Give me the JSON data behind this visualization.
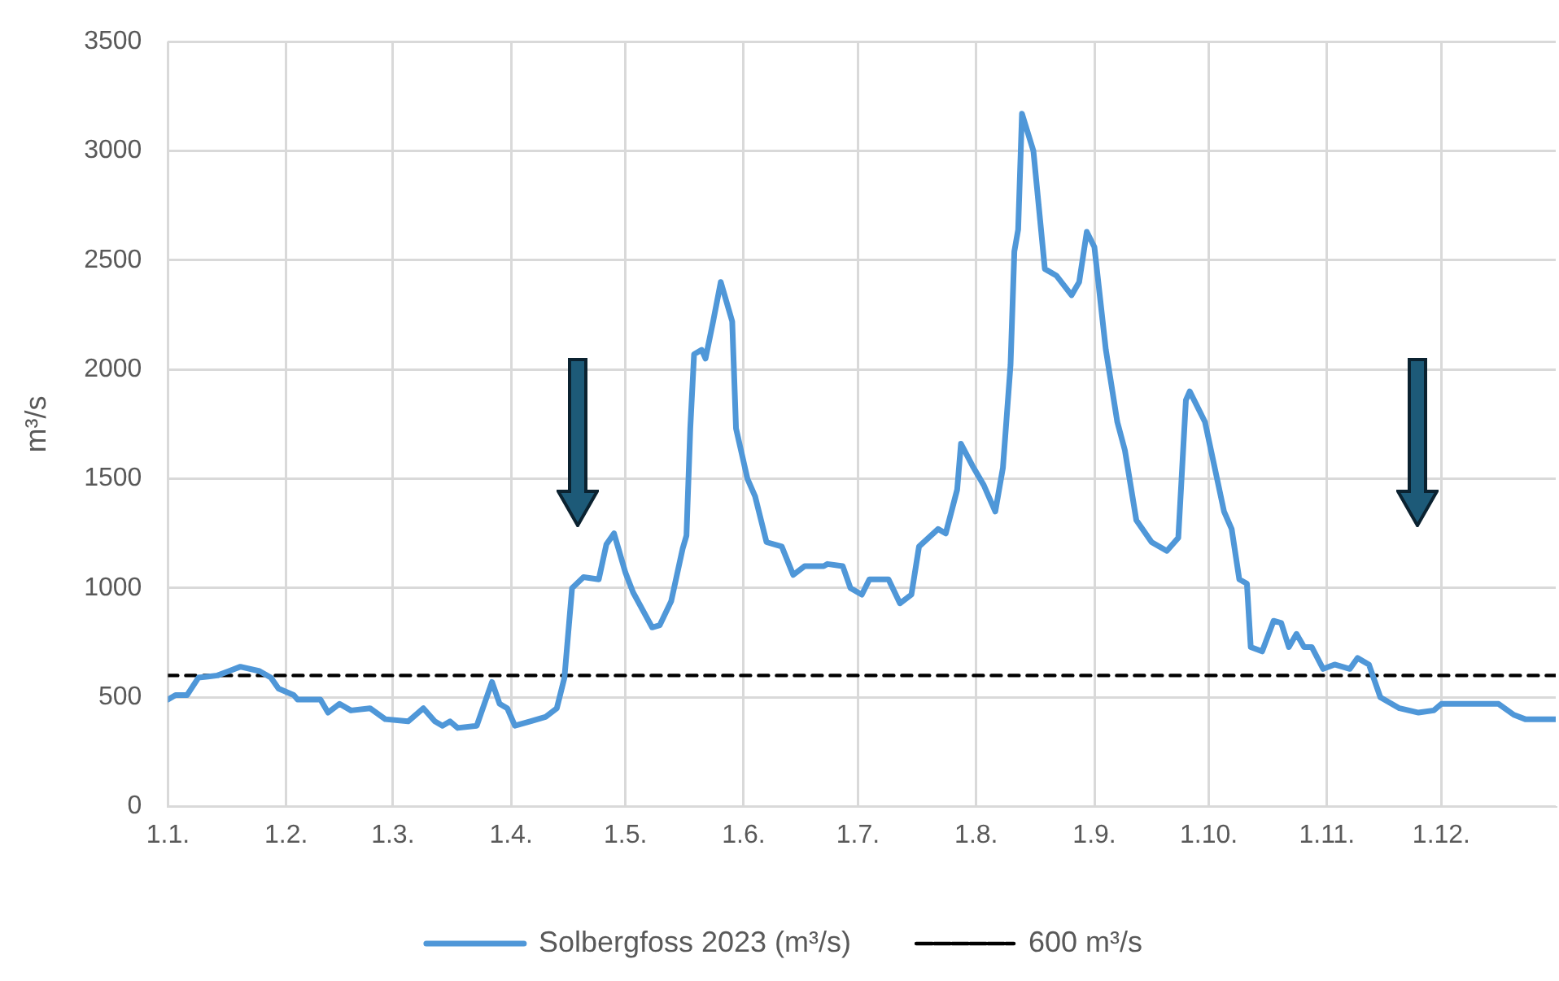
{
  "chart_data": {
    "type": "line",
    "ylabel": "m³/s",
    "x": [
      "--01-01",
      "--01-03",
      "--01-06",
      "--01-09",
      "--01-14",
      "--01-17",
      "--01-20",
      "--01-25",
      "--01-28",
      "--01-30",
      "--02-03",
      "--02-04",
      "--02-10",
      "--02-12",
      "--02-15",
      "--02-18",
      "--02-23",
      "--02-27",
      "--03-05",
      "--03-09",
      "--03-12",
      "--03-14",
      "--03-16",
      "--03-18",
      "--03-23",
      "--03-27",
      "--03-29",
      "--03-31",
      "--04-02",
      "--04-06",
      "--04-10",
      "--04-13",
      "--04-15",
      "--04-17",
      "--04-20",
      "--04-24",
      "--04-26",
      "--04-28",
      "--05-01",
      "--05-03",
      "--05-08",
      "--05-10",
      "--05-13",
      "--05-16",
      "--05-17",
      "--05-18",
      "--05-19",
      "--05-21",
      "--05-22",
      "--05-24",
      "--05-26",
      "--05-29",
      "--05-30",
      "--06-02",
      "--06-04",
      "--06-07",
      "--06-11",
      "--06-14",
      "--06-17",
      "--06-22",
      "--06-23",
      "--06-27",
      "--06-29",
      "--07-02",
      "--07-04",
      "--07-09",
      "--07-12",
      "--07-15",
      "--07-17",
      "--07-22",
      "--07-24",
      "--07-27",
      "--07-28",
      "--07-31",
      "--08-03",
      "--08-06",
      "--08-08",
      "--08-10",
      "--08-11",
      "--08-12",
      "--08-13",
      "--08-16",
      "--08-19",
      "--08-22",
      "--08-26",
      "--08-28",
      "--08-30",
      "--09-01",
      "--09-04",
      "--09-07",
      "--09-09",
      "--09-12",
      "--09-16",
      "--09-20",
      "--09-23",
      "--09-25",
      "--09-26",
      "--09-30",
      "--10-05",
      "--10-07",
      "--10-09",
      "--10-11",
      "--10-12",
      "--10-15",
      "--10-18",
      "--10-20",
      "--10-22",
      "--10-24",
      "--10-26",
      "--10-28",
      "--10-31",
      "--11-03",
      "--11-07",
      "--11-09",
      "--11-12",
      "--11-15",
      "--11-20",
      "--11-25",
      "--11-29",
      "--12-01",
      "--12-16",
      "--12-20",
      "--12-23",
      "--12-31"
    ],
    "series": [
      {
        "name": "Solbergfoss 2023 (m³/s)",
        "color": "#4f97d8",
        "values": [
          490,
          510,
          510,
          590,
          600,
          620,
          640,
          620,
          590,
          540,
          510,
          490,
          490,
          430,
          470,
          440,
          450,
          400,
          390,
          450,
          390,
          370,
          390,
          360,
          370,
          570,
          470,
          450,
          370,
          390,
          410,
          450,
          590,
          1000,
          1050,
          1040,
          1200,
          1250,
          1070,
          980,
          820,
          830,
          940,
          1180,
          1240,
          1730,
          2070,
          2090,
          2050,
          2220,
          2400,
          2220,
          1730,
          1500,
          1420,
          1210,
          1190,
          1060,
          1100,
          1100,
          1110,
          1100,
          1000,
          970,
          1040,
          1040,
          930,
          970,
          1190,
          1270,
          1250,
          1450,
          1660,
          1560,
          1470,
          1350,
          1550,
          2020,
          2540,
          2640,
          3170,
          3000,
          2460,
          2430,
          2340,
          2400,
          2630,
          2560,
          2090,
          1760,
          1630,
          1310,
          1210,
          1170,
          1230,
          1860,
          1900,
          1760,
          1350,
          1270,
          1040,
          1020,
          730,
          710,
          850,
          840,
          730,
          790,
          730,
          730,
          630,
          650,
          630,
          680,
          650,
          500,
          450,
          430,
          440,
          470,
          470,
          420,
          400,
          400
        ]
      },
      {
        "name": "600 m³/s",
        "color": "#000000",
        "line_style": "dashed",
        "x": [
          "--01-01",
          "--12-31"
        ],
        "values": [
          600,
          600
        ]
      }
    ],
    "xlim": [
      "--01-01",
      "--12-31"
    ],
    "xticks": [
      {
        "value": "--01-01",
        "label": "1.1."
      },
      {
        "value": "--02-01",
        "label": "1.2."
      },
      {
        "value": "--03-01",
        "label": "1.3."
      },
      {
        "value": "--04-01",
        "label": "1.4."
      },
      {
        "value": "--05-01",
        "label": "1.5."
      },
      {
        "value": "--06-01",
        "label": "1.6."
      },
      {
        "value": "--07-01",
        "label": "1.7."
      },
      {
        "value": "--08-01",
        "label": "1.8."
      },
      {
        "value": "--09-01",
        "label": "1.9."
      },
      {
        "value": "--10-01",
        "label": "1.10."
      },
      {
        "value": "--11-01",
        "label": "1.11."
      },
      {
        "value": "--12-01",
        "label": "1.12."
      }
    ],
    "ylim": [
      0,
      3500
    ],
    "yticks": [
      0,
      500,
      1000,
      1500,
      2000,
      2500,
      3000,
      3500
    ],
    "grid": true,
    "legend": "bottom",
    "marker": "none"
  }
}
